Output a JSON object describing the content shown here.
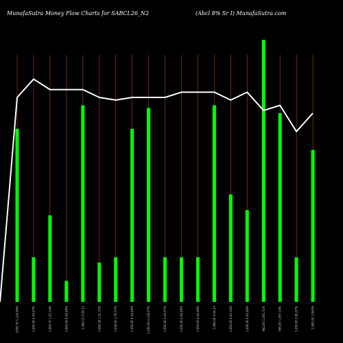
{
  "header": {
    "title_left": "MunafaSutra  Money Flow  Charts for SABCL26_N2",
    "title_right": "(Abcl 8% Sr I) MunafaSutra.com"
  },
  "colors": {
    "background": "#000000",
    "bar": "#00ff00",
    "gridline": "#8B4513",
    "line": "#ffffff"
  },
  "chart_data": {
    "type": "bar",
    "title": "MunafaSutra  Money Flow  Charts for SABCL26_N2",
    "ylim": [
      0,
      100
    ],
    "grid": "vertical",
    "categories": [
      "1056.70 1.124.49%",
      "1,050.00 0.04.57%",
      "1,065.70 1.57.14%",
      "1,062.00 0.04.49%",
      "1,060.13 0.04.23",
      "1,060.18 1.21.72%",
      "1,056.00 1.76.57%",
      "1,050.00 0.04.49%",
      "1,050.00 0.126.57%",
      "1,050.00 0.04.57%",
      "1,050.00 0.04.49%",
      "1,050.00 0.04.49%",
      "1,060.00 0.04.23",
      "1,052.00 0.02.14%",
      "1,056.00 0.04.49%",
      "962.00 1.003.71%",
      "995.00 1.057.14%",
      "1,050.00 2.65.57%",
      "1,000.00 1.063%"
    ],
    "series": [
      {
        "type": "bar",
        "values": [
          66,
          17,
          33,
          8,
          75,
          15,
          17,
          66,
          74,
          17,
          17,
          17,
          75,
          41,
          35,
          100,
          72,
          17,
          58
        ]
      },
      {
        "type": "line",
        "values": [
          78,
          85,
          81,
          81,
          81,
          78,
          77,
          78,
          78,
          78,
          80,
          80,
          80,
          77,
          80,
          73,
          75,
          65,
          72
        ]
      }
    ],
    "line_start_value": 0
  }
}
